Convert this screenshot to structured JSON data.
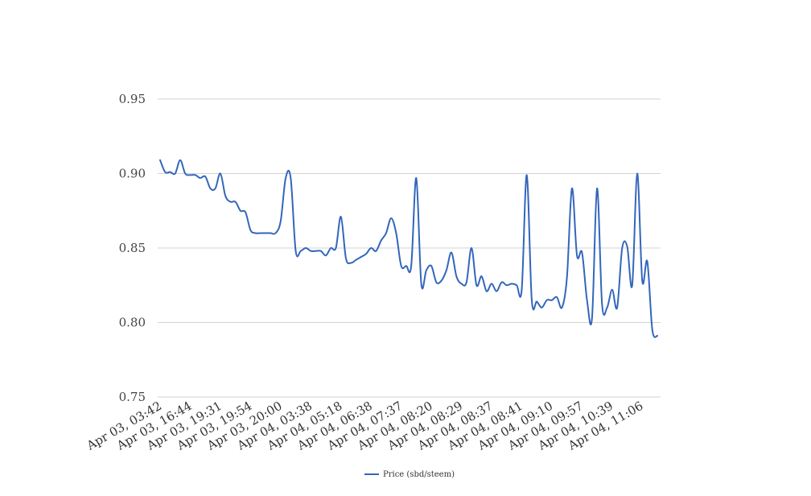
{
  "chart_data": {
    "type": "line",
    "title": "",
    "xlabel": "",
    "ylabel": "",
    "ylim": [
      0.75,
      0.95
    ],
    "y_ticks": [
      "0.75",
      "0.80",
      "0.85",
      "0.90",
      "0.95"
    ],
    "y_tick_values": [
      0.75,
      0.8,
      0.85,
      0.9,
      0.95
    ],
    "x_tick_labels": [
      "Apr 03, 03:42",
      "Apr 03, 16:44",
      "Apr 03, 19:31",
      "Apr 03, 19:54",
      "Apr 03, 20:00",
      "Apr 04, 03:38",
      "Apr 04, 05:18",
      "Apr 04, 06:38",
      "Apr 04, 07:37",
      "Apr 04, 08:20",
      "Apr 04, 08:29",
      "Apr 04, 08:37",
      "Apr 04, 08:41",
      "Apr 04, 09:10",
      "Apr 04, 09:57",
      "Apr 04, 10:39",
      "Apr 04, 11:06"
    ],
    "grid": true,
    "legend_position": "bottom",
    "series": [
      {
        "name": "Price (sbd/steem)",
        "color": "#3366bb",
        "values": [
          0.909,
          0.901,
          0.901,
          0.9,
          0.909,
          0.9,
          0.899,
          0.899,
          0.897,
          0.898,
          0.89,
          0.89,
          0.9,
          0.885,
          0.881,
          0.881,
          0.875,
          0.874,
          0.862,
          0.86,
          0.86,
          0.86,
          0.86,
          0.86,
          0.868,
          0.897,
          0.897,
          0.848,
          0.848,
          0.85,
          0.848,
          0.848,
          0.848,
          0.845,
          0.85,
          0.85,
          0.871,
          0.843,
          0.84,
          0.842,
          0.844,
          0.846,
          0.85,
          0.848,
          0.855,
          0.86,
          0.87,
          0.86,
          0.838,
          0.838,
          0.838,
          0.897,
          0.826,
          0.835,
          0.838,
          0.827,
          0.828,
          0.835,
          0.847,
          0.831,
          0.826,
          0.827,
          0.85,
          0.825,
          0.831,
          0.821,
          0.826,
          0.821,
          0.827,
          0.825,
          0.826,
          0.825,
          0.822,
          0.899,
          0.815,
          0.814,
          0.81,
          0.815,
          0.815,
          0.817,
          0.81,
          0.83,
          0.89,
          0.845,
          0.847,
          0.815,
          0.803,
          0.89,
          0.812,
          0.81,
          0.822,
          0.81,
          0.85,
          0.851,
          0.825,
          0.9,
          0.828,
          0.841,
          0.795,
          0.791
        ]
      }
    ]
  }
}
